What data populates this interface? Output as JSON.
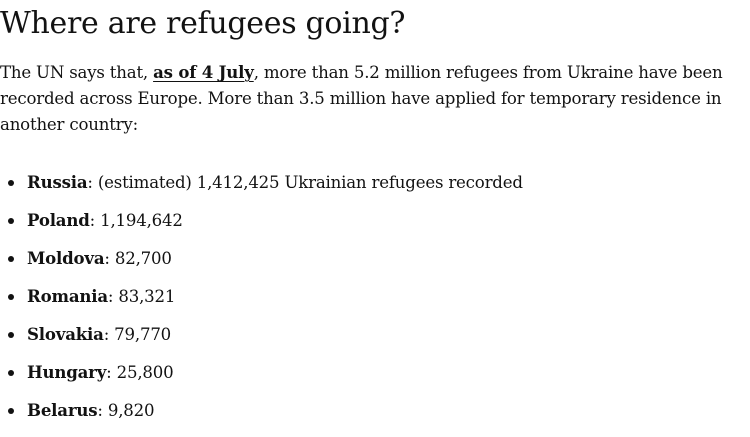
{
  "heading": "Where are refugees going?",
  "intro": {
    "before_link": "The UN says that, ",
    "link": "as of 4 July",
    "after_link": ", more than 5.2 million refugees from Ukraine have been recorded across Europe. More than 3.5 million have applied for temporary residence in another country:"
  },
  "countries": [
    {
      "name": "Russia",
      "value": "(estimated) 1,412,425 Ukrainian refugees recorded"
    },
    {
      "name": "Poland",
      "value": "1,194,642"
    },
    {
      "name": "Moldova",
      "value": "82,700"
    },
    {
      "name": "Romania",
      "value": "83,321"
    },
    {
      "name": "Slovakia",
      "value": "79,770"
    },
    {
      "name": "Hungary",
      "value": "25,800"
    },
    {
      "name": "Belarus",
      "value": "9,820"
    }
  ]
}
